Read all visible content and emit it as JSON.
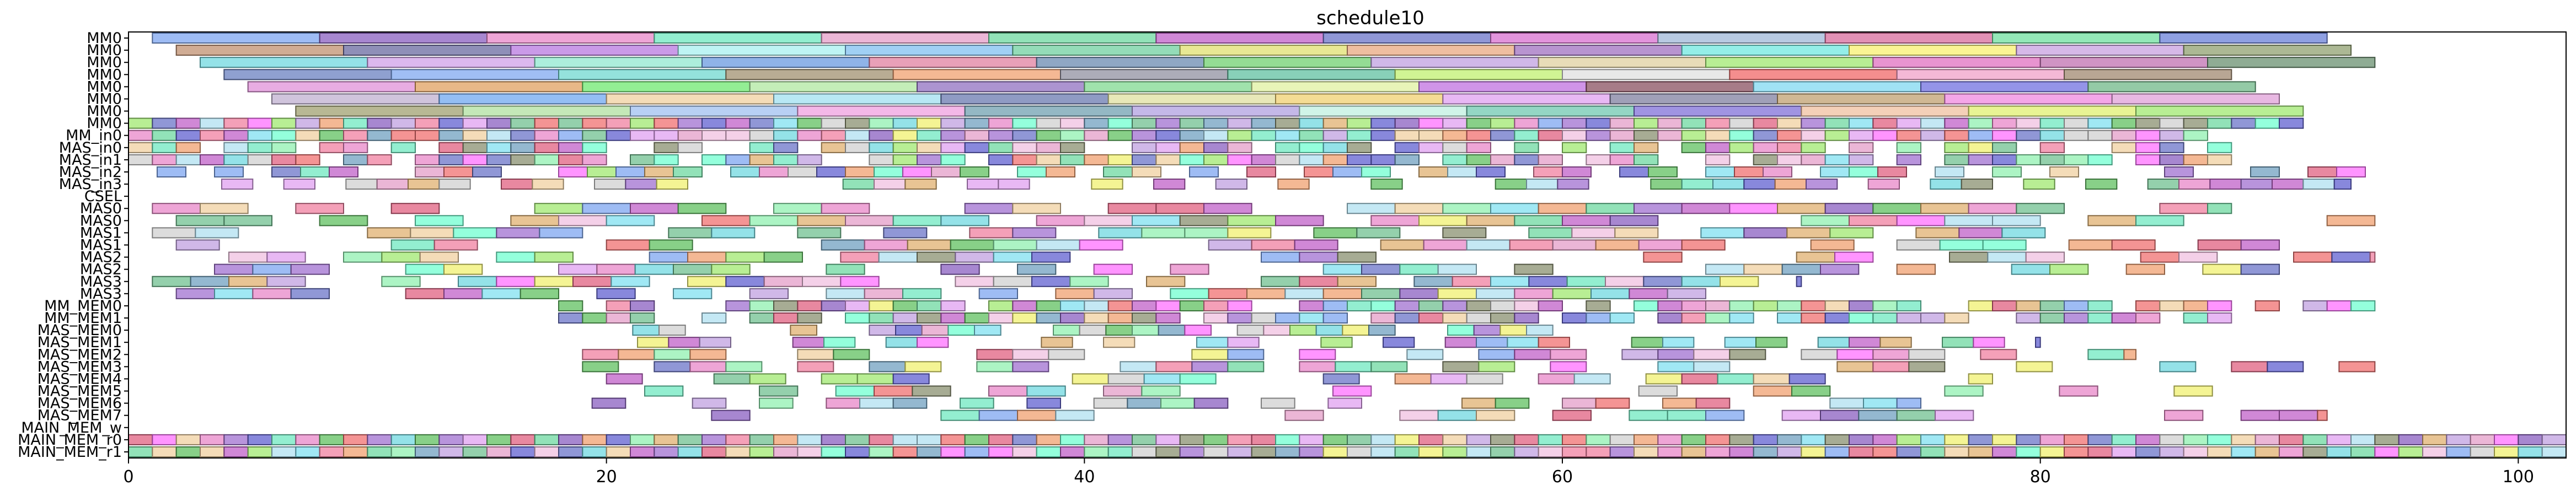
{
  "chart_data": {
    "type": "gantt",
    "title": "schedule10",
    "xlim": [
      0,
      102
    ],
    "xticks": [
      0,
      20,
      40,
      60,
      80,
      100
    ],
    "rows": [
      "MM0",
      "MM0",
      "MM0",
      "MM0",
      "MM0",
      "MM0",
      "MM0",
      "MM0",
      "MM_in0",
      "MAS_in0",
      "MAS_in1",
      "MAS_in2",
      "MAS_in3",
      "CSEL",
      "MAS0",
      "MAS0",
      "MAS1",
      "MAS1",
      "MAS2",
      "MAS2",
      "MAS3",
      "MAS3",
      "MM_MEM0",
      "MM_MEM1",
      "MAS_MEM0",
      "MAS_MEM1",
      "MAS_MEM2",
      "MAS_MEM3",
      "MAS_MEM4",
      "MAS_MEM5",
      "MAS_MEM6",
      "MAS_MEM7",
      "MAIN_MEM_w",
      "MAIN_MEM_r0",
      "MAIN_MEM_r1"
    ],
    "tasks": [
      {
        "row": 0,
        "start": 1.0,
        "end": 8.0,
        "color": "#7ea6f0"
      },
      {
        "row": 0,
        "start": 8.0,
        "end": 15.0,
        "color": "#8a5fc0"
      },
      {
        "row": 0,
        "start": 15.0,
        "end": 22.0,
        "color": "#e887c8"
      },
      {
        "row": 0,
        "start": 22.0,
        "end": 29.0,
        "color": "#6fe8c0"
      },
      {
        "row": 0,
        "start": 29.0,
        "end": 36.0,
        "color": "#e49ec8"
      },
      {
        "row": 0,
        "start": 36.0,
        "end": 43.0,
        "color": "#6ed8a0"
      },
      {
        "row": 0,
        "start": 43.0,
        "end": 50.0,
        "color": "#c060c8"
      },
      {
        "row": 0,
        "start": 50.0,
        "end": 57.0,
        "color": "#6b74c8"
      },
      {
        "row": 0,
        "start": 57.0,
        "end": 64.0,
        "color": "#d870d0"
      },
      {
        "row": 0,
        "start": 64.0,
        "end": 71.0,
        "color": "#a0b8d8"
      },
      {
        "row": 0,
        "start": 71.0,
        "end": 78.0,
        "color": "#d86c9c"
      },
      {
        "row": 0,
        "start": 78.0,
        "end": 85.0,
        "color": "#70e0a0"
      },
      {
        "row": 0,
        "start": 85.0,
        "end": 92.0,
        "color": "#6a80d8"
      },
      {
        "row": 1,
        "start": 2.0,
        "end": 9.0,
        "color": "#c09070"
      },
      {
        "row": 1,
        "start": 9.0,
        "end": 16.0,
        "color": "#6a6aa0"
      },
      {
        "row": 1,
        "start": 16.0,
        "end": 23.0,
        "color": "#b878e0"
      },
      {
        "row": 1,
        "start": 23.0,
        "end": 30.0,
        "color": "#a8f0f0"
      },
      {
        "row": 1,
        "start": 30.0,
        "end": 37.0,
        "color": "#80c0f0"
      },
      {
        "row": 1,
        "start": 37.0,
        "end": 44.0,
        "color": "#70d0a0"
      },
      {
        "row": 1,
        "start": 44.0,
        "end": 51.0,
        "color": "#e0e070"
      },
      {
        "row": 1,
        "start": 51.0,
        "end": 58.0,
        "color": "#e8a880"
      },
      {
        "row": 1,
        "start": 58.0,
        "end": 65.0,
        "color": "#a070c0"
      },
      {
        "row": 1,
        "start": 65.0,
        "end": 72.0,
        "color": "#70e8e0"
      },
      {
        "row": 1,
        "start": 72.0,
        "end": 79.0,
        "color": "#f8f070"
      },
      {
        "row": 1,
        "start": 79.0,
        "end": 86.0,
        "color": "#c8a0e0"
      },
      {
        "row": 1,
        "start": 86.0,
        "end": 93.0,
        "color": "#90a070"
      },
      {
        "row": 2,
        "start": 3.0,
        "end": 10.0,
        "color": "#70d8e0"
      },
      {
        "row": 2,
        "start": 10.0,
        "end": 17.0,
        "color": "#d0a0e8"
      },
      {
        "row": 2,
        "start": 17.0,
        "end": 24.0,
        "color": "#90e8d0"
      },
      {
        "row": 2,
        "start": 24.0,
        "end": 31.0,
        "color": "#6a9ae0"
      },
      {
        "row": 2,
        "start": 31.0,
        "end": 38.0,
        "color": "#e080a0"
      },
      {
        "row": 2,
        "start": 38.0,
        "end": 45.0,
        "color": "#6a8ab0"
      },
      {
        "row": 2,
        "start": 45.0,
        "end": 52.0,
        "color": "#70d070"
      },
      {
        "row": 2,
        "start": 52.0,
        "end": 59.0,
        "color": "#c0a0e0"
      },
      {
        "row": 2,
        "start": 59.0,
        "end": 66.0,
        "color": "#e0d0a0"
      },
      {
        "row": 2,
        "start": 66.0,
        "end": 73.0,
        "color": "#a0e870"
      },
      {
        "row": 2,
        "start": 73.0,
        "end": 80.0,
        "color": "#e070c0"
      },
      {
        "row": 2,
        "start": 80.0,
        "end": 87.0,
        "color": "#c070b0"
      },
      {
        "row": 2,
        "start": 87.0,
        "end": 94.0,
        "color": "#6a9070"
      },
      {
        "row": 3,
        "start": 4.0,
        "end": 11.0,
        "color": "#6a80c0"
      },
      {
        "row": 3,
        "start": 11.0,
        "end": 18.0,
        "color": "#80a8f0"
      },
      {
        "row": 3,
        "start": 18.0,
        "end": 25.0,
        "color": "#70d8d0"
      },
      {
        "row": 3,
        "start": 25.0,
        "end": 32.0,
        "color": "#a09070"
      },
      {
        "row": 3,
        "start": 32.0,
        "end": 39.0,
        "color": "#f0a070"
      },
      {
        "row": 3,
        "start": 39.0,
        "end": 46.0,
        "color": "#9090a0"
      },
      {
        "row": 3,
        "start": 46.0,
        "end": 53.0,
        "color": "#60c0a0"
      },
      {
        "row": 3,
        "start": 53.0,
        "end": 60.0,
        "color": "#c0f070"
      },
      {
        "row": 3,
        "start": 60.0,
        "end": 67.0,
        "color": "#e0e0e0"
      },
      {
        "row": 3,
        "start": 67.0,
        "end": 74.0,
        "color": "#f06868"
      },
      {
        "row": 3,
        "start": 74.0,
        "end": 81.0,
        "color": "#f0a0c8"
      },
      {
        "row": 3,
        "start": 81.0,
        "end": 88.0,
        "color": "#a08870"
      },
      {
        "row": 4,
        "start": 5.0,
        "end": 12.0,
        "color": "#e090d8"
      },
      {
        "row": 4,
        "start": 12.0,
        "end": 19.0,
        "color": "#e0a060"
      },
      {
        "row": 4,
        "start": 19.0,
        "end": 26.0,
        "color": "#6fe870"
      },
      {
        "row": 4,
        "start": 26.0,
        "end": 33.0,
        "color": "#b0e8a0"
      },
      {
        "row": 4,
        "start": 33.0,
        "end": 40.0,
        "color": "#9070c0"
      },
      {
        "row": 4,
        "start": 40.0,
        "end": 47.0,
        "color": "#80d890"
      },
      {
        "row": 4,
        "start": 47.0,
        "end": 54.0,
        "color": "#e0f0a0"
      },
      {
        "row": 4,
        "start": 54.0,
        "end": 61.0,
        "color": "#c070e0"
      },
      {
        "row": 4,
        "start": 61.0,
        "end": 68.0,
        "color": "#8a5060"
      },
      {
        "row": 4,
        "start": 68.0,
        "end": 75.0,
        "color": "#80d8f0"
      },
      {
        "row": 4,
        "start": 75.0,
        "end": 82.0,
        "color": "#7070e0"
      },
      {
        "row": 4,
        "start": 82.0,
        "end": 89.0,
        "color": "#70b888"
      },
      {
        "row": 5,
        "start": 6.0,
        "end": 13.0,
        "color": "#c0b0d0"
      },
      {
        "row": 5,
        "start": 13.0,
        "end": 20.0,
        "color": "#70a8f0"
      },
      {
        "row": 5,
        "start": 20.0,
        "end": 27.0,
        "color": "#f0d0a0"
      },
      {
        "row": 5,
        "start": 27.0,
        "end": 34.0,
        "color": "#a0e0f0"
      },
      {
        "row": 5,
        "start": 34.0,
        "end": 41.0,
        "color": "#6a7ab0"
      },
      {
        "row": 5,
        "start": 41.0,
        "end": 48.0,
        "color": "#e0e0a0"
      },
      {
        "row": 5,
        "start": 48.0,
        "end": 55.0,
        "color": "#f0d070"
      },
      {
        "row": 5,
        "start": 55.0,
        "end": 62.0,
        "color": "#e0a0f0"
      },
      {
        "row": 5,
        "start": 62.0,
        "end": 69.0,
        "color": "#8080a0"
      },
      {
        "row": 5,
        "start": 69.0,
        "end": 76.0,
        "color": "#c0a070"
      },
      {
        "row": 5,
        "start": 76.0,
        "end": 83.0,
        "color": "#f088e0"
      },
      {
        "row": 5,
        "start": 83.0,
        "end": 90.0,
        "color": "#e0a0d8"
      },
      {
        "row": 6,
        "start": 7.0,
        "end": 14.0,
        "color": "#a0a070"
      },
      {
        "row": 6,
        "start": 14.0,
        "end": 21.0,
        "color": "#b0e0a0"
      },
      {
        "row": 6,
        "start": 21.0,
        "end": 28.0,
        "color": "#a0c0f0"
      },
      {
        "row": 6,
        "start": 28.0,
        "end": 35.0,
        "color": "#f0a0e0"
      },
      {
        "row": 6,
        "start": 35.0,
        "end": 42.0,
        "color": "#70a0b0"
      },
      {
        "row": 6,
        "start": 42.0,
        "end": 49.0,
        "color": "#b0a0e0"
      },
      {
        "row": 6,
        "start": 49.0,
        "end": 56.0,
        "color": "#c0f0e0"
      },
      {
        "row": 6,
        "start": 56.0,
        "end": 63.0,
        "color": "#70c8b0"
      },
      {
        "row": 6,
        "start": 63.0,
        "end": 70.0,
        "color": "#8070d8"
      },
      {
        "row": 6,
        "start": 70.0,
        "end": 77.0,
        "color": "#f0c0a0"
      },
      {
        "row": 6,
        "start": 77.0,
        "end": 84.0,
        "color": "#e0f070"
      },
      {
        "row": 6,
        "start": 84.0,
        "end": 91.0,
        "color": "#a0e870"
      },
      {
        "row": 7,
        "start": 0.0,
        "end": 0.0,
        "color": "#ffffff"
      }
    ],
    "dense_rows": [
      {
        "row": 7,
        "start": 0.0,
        "end": 91.0,
        "step": 1.0,
        "gap": 0.0,
        "seed": 11
      },
      {
        "row": 8,
        "start": 0.0,
        "end": 87.0,
        "step": 1.0,
        "gap": 0.0,
        "seed": 12
      },
      {
        "row": 9,
        "start": 0.0,
        "end": 88.0,
        "step": 1.0,
        "gap": 0.2,
        "seed": 13
      },
      {
        "row": 10,
        "start": 0.0,
        "end": 88.0,
        "step": 1.0,
        "gap": 0.2,
        "seed": 14
      },
      {
        "row": 11,
        "start": 0.0,
        "end": 94.0,
        "step": 1.2,
        "gap": 0.35,
        "seed": 15
      },
      {
        "row": 12,
        "start": 0.0,
        "end": 93.0,
        "step": 1.3,
        "gap": 0.4,
        "seed": 16
      },
      {
        "row": 14,
        "start": 1.0,
        "end": 88.0,
        "step": 2.0,
        "gap": 0.3,
        "seed": 17
      },
      {
        "row": 15,
        "start": 2.0,
        "end": 94.0,
        "step": 2.0,
        "gap": 0.35,
        "seed": 18
      },
      {
        "row": 16,
        "start": 1.0,
        "end": 83.0,
        "step": 1.8,
        "gap": 0.4,
        "seed": 19
      },
      {
        "row": 17,
        "start": 2.0,
        "end": 90.0,
        "step": 1.8,
        "gap": 0.4,
        "seed": 20
      },
      {
        "row": 18,
        "start": 1.0,
        "end": 94.0,
        "step": 1.6,
        "gap": 0.35,
        "seed": 21
      },
      {
        "row": 19,
        "start": 2.0,
        "end": 90.0,
        "step": 1.6,
        "gap": 0.35,
        "seed": 22
      },
      {
        "row": 20,
        "start": 1.0,
        "end": 70.0,
        "step": 1.6,
        "gap": 0.3,
        "seed": 23
      },
      {
        "row": 21,
        "start": 2.0,
        "end": 66.0,
        "step": 1.6,
        "gap": 0.3,
        "seed": 24
      },
      {
        "row": 22,
        "start": 18.0,
        "end": 94.0,
        "step": 1.0,
        "gap": 0.15,
        "seed": 25
      },
      {
        "row": 23,
        "start": 18.0,
        "end": 88.0,
        "step": 1.0,
        "gap": 0.15,
        "seed": 26
      },
      {
        "row": 24,
        "start": 20.0,
        "end": 60.0,
        "step": 1.1,
        "gap": 0.3,
        "seed": 27
      },
      {
        "row": 25,
        "start": 20.0,
        "end": 80.0,
        "step": 1.3,
        "gap": 0.35,
        "seed": 28
      },
      {
        "row": 26,
        "start": 19.0,
        "end": 84.0,
        "step": 1.5,
        "gap": 0.45,
        "seed": 29
      },
      {
        "row": 27,
        "start": 19.0,
        "end": 94.0,
        "step": 1.5,
        "gap": 0.45,
        "seed": 30
      },
      {
        "row": 28,
        "start": 20.0,
        "end": 78.0,
        "step": 1.5,
        "gap": 0.45,
        "seed": 31
      },
      {
        "row": 29,
        "start": 20.0,
        "end": 93.0,
        "step": 1.6,
        "gap": 0.5,
        "seed": 32
      },
      {
        "row": 30,
        "start": 18.0,
        "end": 75.0,
        "step": 1.4,
        "gap": 0.4,
        "seed": 33
      },
      {
        "row": 31,
        "start": 18.0,
        "end": 92.0,
        "step": 1.6,
        "gap": 0.5,
        "seed": 34
      },
      {
        "row": 33,
        "start": 0.0,
        "end": 102.0,
        "step": 1.0,
        "gap": 0.0,
        "seed": 35
      },
      {
        "row": 34,
        "start": 0.0,
        "end": 102.0,
        "step": 1.0,
        "gap": 0.0,
        "seed": 36
      }
    ],
    "palette": [
      "#7ea6f0",
      "#8a5fc0",
      "#e887c8",
      "#6fe8c0",
      "#e49ec8",
      "#6ed8a0",
      "#c060c8",
      "#6b74c8",
      "#f0a070",
      "#a0e870",
      "#f0f070",
      "#70d8e0",
      "#e06080",
      "#60c060",
      "#c0a0e0",
      "#f0c0e0",
      "#80e0f0",
      "#e0b070",
      "#70a0c0",
      "#f080a0",
      "#a070d0",
      "#d0d0d0",
      "#90f0b0",
      "#6060d0",
      "#f07070",
      "#b0e0f0",
      "#e0a0f0",
      "#70c090",
      "#f0d0a0",
      "#8a9070",
      "#ff70ff",
      "#70ffd0"
    ]
  }
}
